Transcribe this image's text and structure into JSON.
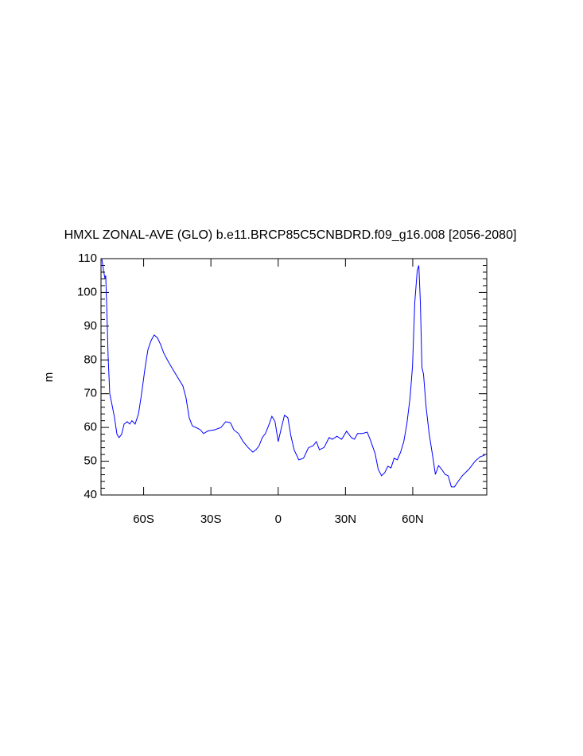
{
  "chart_data": {
    "type": "line",
    "title": "HMXL ZONAL-AVE (GLO) b.e11.BRCP85C5CNBDRD.f09_g16.008 [2056-2080]",
    "ylabel": "m",
    "x": [
      -78.6,
      -77.9,
      -77.2,
      -76.9,
      -76.5,
      -75.8,
      -75.1,
      -74.0,
      -73.0,
      -71.9,
      -70.9,
      -69.8,
      -68.7,
      -67.3,
      -66.2,
      -65.2,
      -63.8,
      -62.3,
      -60.9,
      -59.5,
      -58.1,
      -56.7,
      -55.3,
      -53.8,
      -52.4,
      -51.0,
      -48.9,
      -46.8,
      -44.6,
      -42.5,
      -41.1,
      -39.7,
      -38.3,
      -36.1,
      -34.7,
      -33.3,
      -31.2,
      -28.3,
      -25.5,
      -23.4,
      -21.3,
      -19.8,
      -17.7,
      -15.6,
      -13.5,
      -11.3,
      -9.9,
      -8.5,
      -7.1,
      -5.7,
      -4.3,
      -2.8,
      -1.4,
      0,
      1.4,
      2.8,
      4.3,
      5.7,
      7.1,
      9.2,
      11.3,
      13.5,
      15.6,
      17.0,
      18.4,
      20.5,
      22.7,
      24.1,
      26.2,
      28.3,
      30.5,
      32.6,
      34.0,
      35.4,
      37.5,
      39.7,
      41.1,
      43.2,
      44.6,
      46.1,
      47.5,
      48.9,
      50.3,
      51.7,
      53.1,
      54.6,
      56.0,
      57.4,
      58.8,
      59.9,
      60.9,
      62.0,
      62.7,
      63.4,
      64.1,
      64.8,
      65.9,
      67.3,
      68.7,
      70.1,
      71.5,
      72.9,
      74.4,
      75.8,
      77.2,
      78.6,
      80.0,
      82.1,
      85.0,
      87.8,
      90.0,
      92.1
    ],
    "series": [
      {
        "color": "#0000ff",
        "values": [
          109.8,
          106.5,
          104,
          105,
          97,
          80.5,
          70,
          66.4,
          63,
          58,
          57,
          58,
          61,
          61.7,
          61,
          62,
          61,
          64,
          70,
          77,
          83,
          85.7,
          87.4,
          86.5,
          84.5,
          82,
          79.4,
          77,
          74.6,
          72.3,
          68.8,
          62.9,
          60.5,
          59.8,
          59.3,
          58.2,
          59,
          59.3,
          60,
          61.7,
          61.4,
          59.3,
          58.2,
          55.8,
          54.1,
          52.7,
          53.4,
          54.6,
          57,
          58.2,
          60.5,
          63.3,
          61.7,
          55.8,
          59.8,
          63.6,
          62.9,
          57.4,
          53.4,
          50.4,
          50.9,
          54,
          54.6,
          55.8,
          53.4,
          54.1,
          57,
          56.5,
          57.4,
          56.5,
          58.9,
          57,
          56.5,
          58.2,
          58.2,
          58.6,
          56.3,
          52.3,
          47.6,
          45.7,
          46.6,
          48.5,
          48,
          50.9,
          50.4,
          52.7,
          55.8,
          61.2,
          68.8,
          78.2,
          97,
          106.5,
          108,
          97,
          77.7,
          75.8,
          66.4,
          58.2,
          52.3,
          46.1,
          48.7,
          47.6,
          46.1,
          45.7,
          42.4,
          42.4,
          43.8,
          45.7,
          47.6,
          50,
          51.3,
          51.8
        ]
      }
    ],
    "xlim": [
      -79,
      93
    ],
    "xticks": [
      {
        "value": -60,
        "label": "60S"
      },
      {
        "value": -30,
        "label": "30S"
      },
      0,
      {
        "value": 30,
        "label": "30N"
      },
      {
        "value": 60,
        "label": "60N"
      }
    ],
    "ylim": [
      40,
      110
    ],
    "yticks": [
      40,
      50,
      60,
      70,
      80,
      90,
      100,
      110
    ],
    "yminorticks": [
      42,
      44,
      46,
      48,
      52,
      54,
      56,
      58,
      62,
      64,
      66,
      68,
      72,
      74,
      76,
      78,
      82,
      84,
      86,
      88,
      92,
      94,
      96,
      98,
      102,
      104,
      106,
      108
    ]
  }
}
